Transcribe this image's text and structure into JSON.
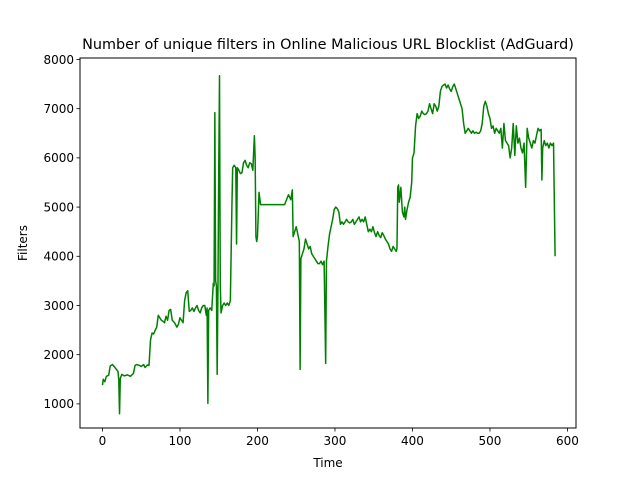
{
  "chart_data": {
    "type": "line",
    "title": "Number of unique filters in Online Malicious URL Blocklist (AdGuard)",
    "xlabel": "Time",
    "ylabel": "Filters",
    "xlim": [
      -29,
      611
    ],
    "ylim": [
      510,
      8030
    ],
    "xticks": [
      0,
      100,
      200,
      300,
      400,
      500,
      600
    ],
    "yticks": [
      1000,
      2000,
      3000,
      4000,
      5000,
      6000,
      7000,
      8000
    ],
    "grid": false,
    "series": [
      {
        "color": "#008000",
        "points": [
          [
            0,
            1380
          ],
          [
            1,
            1500
          ],
          [
            3,
            1450
          ],
          [
            5,
            1560
          ],
          [
            8,
            1580
          ],
          [
            10,
            1770
          ],
          [
            13,
            1800
          ],
          [
            16,
            1740
          ],
          [
            18,
            1700
          ],
          [
            20,
            1660
          ],
          [
            21,
            1500
          ],
          [
            22,
            800
          ],
          [
            23,
            1520
          ],
          [
            25,
            1600
          ],
          [
            28,
            1570
          ],
          [
            32,
            1590
          ],
          [
            36,
            1560
          ],
          [
            40,
            1620
          ],
          [
            42,
            1780
          ],
          [
            44,
            1800
          ],
          [
            48,
            1780
          ],
          [
            50,
            1760
          ],
          [
            53,
            1800
          ],
          [
            55,
            1740
          ],
          [
            58,
            1790
          ],
          [
            60,
            1780
          ],
          [
            62,
            2300
          ],
          [
            64,
            2440
          ],
          [
            66,
            2420
          ],
          [
            68,
            2500
          ],
          [
            70,
            2560
          ],
          [
            72,
            2800
          ],
          [
            74,
            2750
          ],
          [
            76,
            2700
          ],
          [
            78,
            2680
          ],
          [
            80,
            2650
          ],
          [
            82,
            2780
          ],
          [
            84,
            2700
          ],
          [
            86,
            2900
          ],
          [
            88,
            2920
          ],
          [
            90,
            2700
          ],
          [
            93,
            2650
          ],
          [
            96,
            2560
          ],
          [
            98,
            2620
          ],
          [
            100,
            2750
          ],
          [
            102,
            2700
          ],
          [
            104,
            2650
          ],
          [
            106,
            3100
          ],
          [
            108,
            3260
          ],
          [
            110,
            3300
          ],
          [
            112,
            2880
          ],
          [
            114,
            2900
          ],
          [
            116,
            2950
          ],
          [
            118,
            2880
          ],
          [
            120,
            2950
          ],
          [
            122,
            3000
          ],
          [
            124,
            2900
          ],
          [
            126,
            2850
          ],
          [
            128,
            2950
          ],
          [
            130,
            3000
          ],
          [
            132,
            3000
          ],
          [
            134,
            2800
          ],
          [
            135,
            2950
          ],
          [
            136,
            1010
          ],
          [
            137,
            2900
          ],
          [
            139,
            2950
          ],
          [
            141,
            2900
          ],
          [
            143,
            3450
          ],
          [
            144,
            3400
          ],
          [
            145,
            6920
          ],
          [
            146,
            3500
          ],
          [
            147,
            3400
          ],
          [
            148,
            1600
          ],
          [
            149,
            3350
          ],
          [
            150,
            5700
          ],
          [
            151,
            7670
          ],
          [
            152,
            3400
          ],
          [
            153,
            2850
          ],
          [
            155,
            3000
          ],
          [
            157,
            3050
          ],
          [
            159,
            3000
          ],
          [
            161,
            3050
          ],
          [
            163,
            3000
          ],
          [
            165,
            3100
          ],
          [
            167,
            5000
          ],
          [
            168,
            5800
          ],
          [
            170,
            5850
          ],
          [
            172,
            5800
          ],
          [
            173,
            4250
          ],
          [
            174,
            5800
          ],
          [
            176,
            5750
          ],
          [
            178,
            5680
          ],
          [
            180,
            5700
          ],
          [
            182,
            5900
          ],
          [
            184,
            5950
          ],
          [
            186,
            5850
          ],
          [
            188,
            5800
          ],
          [
            190,
            5900
          ],
          [
            192,
            5880
          ],
          [
            194,
            5750
          ],
          [
            196,
            6450
          ],
          [
            197,
            6000
          ],
          [
            198,
            4400
          ],
          [
            199,
            4300
          ],
          [
            200,
            4400
          ],
          [
            202,
            5300
          ],
          [
            204,
            5050
          ],
          [
            206,
            5050
          ],
          [
            210,
            5050
          ],
          [
            215,
            5050
          ],
          [
            220,
            5050
          ],
          [
            225,
            5050
          ],
          [
            230,
            5050
          ],
          [
            235,
            5050
          ],
          [
            240,
            5250
          ],
          [
            243,
            5150
          ],
          [
            245,
            5350
          ],
          [
            246,
            4400
          ],
          [
            248,
            4500
          ],
          [
            250,
            4600
          ],
          [
            252,
            4450
          ],
          [
            254,
            4300
          ],
          [
            255,
            1700
          ],
          [
            256,
            3950
          ],
          [
            258,
            4050
          ],
          [
            260,
            4150
          ],
          [
            262,
            4350
          ],
          [
            264,
            4250
          ],
          [
            266,
            4150
          ],
          [
            268,
            4200
          ],
          [
            270,
            4050
          ],
          [
            272,
            4000
          ],
          [
            274,
            3950
          ],
          [
            276,
            3900
          ],
          [
            278,
            3850
          ],
          [
            280,
            3850
          ],
          [
            282,
            3900
          ],
          [
            284,
            3830
          ],
          [
            286,
            3900
          ],
          [
            288,
            1820
          ],
          [
            289,
            3900
          ],
          [
            291,
            4200
          ],
          [
            293,
            4450
          ],
          [
            295,
            4600
          ],
          [
            297,
            4750
          ],
          [
            299,
            4950
          ],
          [
            301,
            5000
          ],
          [
            303,
            4970
          ],
          [
            305,
            4900
          ],
          [
            307,
            4650
          ],
          [
            309,
            4700
          ],
          [
            311,
            4650
          ],
          [
            313,
            4700
          ],
          [
            315,
            4750
          ],
          [
            317,
            4700
          ],
          [
            319,
            4680
          ],
          [
            321,
            4700
          ],
          [
            323,
            4750
          ],
          [
            325,
            4650
          ],
          [
            327,
            4700
          ],
          [
            329,
            4750
          ],
          [
            331,
            4800
          ],
          [
            333,
            4700
          ],
          [
            335,
            4750
          ],
          [
            337,
            4700
          ],
          [
            339,
            4800
          ],
          [
            341,
            4650
          ],
          [
            343,
            4500
          ],
          [
            345,
            4550
          ],
          [
            347,
            4500
          ],
          [
            349,
            4600
          ],
          [
            351,
            4480
          ],
          [
            353,
            4400
          ],
          [
            355,
            4500
          ],
          [
            357,
            4420
          ],
          [
            359,
            4380
          ],
          [
            361,
            4480
          ],
          [
            363,
            4420
          ],
          [
            365,
            4350
          ],
          [
            367,
            4300
          ],
          [
            369,
            4250
          ],
          [
            371,
            4150
          ],
          [
            373,
            4100
          ],
          [
            375,
            4200
          ],
          [
            377,
            4150
          ],
          [
            379,
            4100
          ],
          [
            380,
            4160
          ],
          [
            381,
            5400
          ],
          [
            382,
            5450
          ],
          [
            383,
            5100
          ],
          [
            385,
            5400
          ],
          [
            387,
            4900
          ],
          [
            389,
            4800
          ],
          [
            390,
            5000
          ],
          [
            391,
            4750
          ],
          [
            393,
            4950
          ],
          [
            395,
            5100
          ],
          [
            397,
            5200
          ],
          [
            399,
            5500
          ],
          [
            400,
            6000
          ],
          [
            402,
            6100
          ],
          [
            404,
            6650
          ],
          [
            406,
            6900
          ],
          [
            408,
            6800
          ],
          [
            410,
            6850
          ],
          [
            412,
            6950
          ],
          [
            414,
            6900
          ],
          [
            416,
            6880
          ],
          [
            418,
            6900
          ],
          [
            420,
            6950
          ],
          [
            422,
            7100
          ],
          [
            424,
            7000
          ],
          [
            426,
            6900
          ],
          [
            428,
            7100
          ],
          [
            430,
            7050
          ],
          [
            432,
            6950
          ],
          [
            434,
            7050
          ],
          [
            436,
            7350
          ],
          [
            438,
            7450
          ],
          [
            440,
            7480
          ],
          [
            442,
            7500
          ],
          [
            444,
            7420
          ],
          [
            446,
            7480
          ],
          [
            448,
            7400
          ],
          [
            450,
            7350
          ],
          [
            452,
            7450
          ],
          [
            454,
            7500
          ],
          [
            456,
            7400
          ],
          [
            458,
            7300
          ],
          [
            460,
            7200
          ],
          [
            462,
            7100
          ],
          [
            464,
            7000
          ],
          [
            466,
            6700
          ],
          [
            468,
            6500
          ],
          [
            470,
            6550
          ],
          [
            472,
            6600
          ],
          [
            474,
            6550
          ],
          [
            476,
            6500
          ],
          [
            478,
            6550
          ],
          [
            480,
            6500
          ],
          [
            482,
            6520
          ],
          [
            484,
            6500
          ],
          [
            486,
            6500
          ],
          [
            488,
            6550
          ],
          [
            490,
            6700
          ],
          [
            492,
            7050
          ],
          [
            494,
            7150
          ],
          [
            496,
            7050
          ],
          [
            498,
            6900
          ],
          [
            500,
            6800
          ],
          [
            502,
            6600
          ],
          [
            504,
            6650
          ],
          [
            506,
            6500
          ],
          [
            508,
            6600
          ],
          [
            510,
            6550
          ],
          [
            512,
            6500
          ],
          [
            514,
            6600
          ],
          [
            516,
            6200
          ],
          [
            518,
            6700
          ],
          [
            520,
            6350
          ],
          [
            522,
            6300
          ],
          [
            524,
            6250
          ],
          [
            526,
            6000
          ],
          [
            528,
            6200
          ],
          [
            530,
            6700
          ],
          [
            532,
            6050
          ],
          [
            534,
            6650
          ],
          [
            536,
            6300
          ],
          [
            538,
            6400
          ],
          [
            540,
            6200
          ],
          [
            542,
            6100
          ],
          [
            544,
            6300
          ],
          [
            546,
            5400
          ],
          [
            548,
            6600
          ],
          [
            550,
            6400
          ],
          [
            552,
            6300
          ],
          [
            554,
            6200
          ],
          [
            556,
            6350
          ],
          [
            558,
            6300
          ],
          [
            560,
            6450
          ],
          [
            562,
            6600
          ],
          [
            564,
            6550
          ],
          [
            566,
            6580
          ],
          [
            567,
            5550
          ],
          [
            568,
            6200
          ],
          [
            570,
            6350
          ],
          [
            572,
            6250
          ],
          [
            574,
            6300
          ],
          [
            576,
            6200
          ],
          [
            578,
            6300
          ],
          [
            580,
            6250
          ],
          [
            582,
            6300
          ],
          [
            584,
            4000
          ]
        ]
      }
    ]
  }
}
